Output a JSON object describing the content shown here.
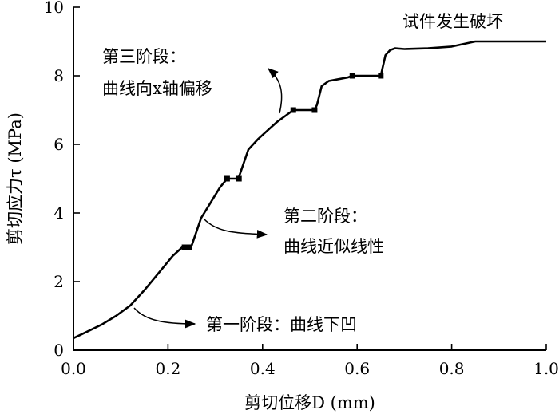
{
  "chart_data": {
    "type": "line",
    "xlabel": "剪切位移D (mm)",
    "ylabel": "剪切应力τ (MPa)",
    "xlim": [
      0,
      1.0
    ],
    "ylim": [
      0,
      10
    ],
    "x_ticks": [
      0.0,
      0.2,
      0.4,
      0.6,
      0.8,
      1.0
    ],
    "x_tick_labels": [
      "0.0",
      "0.2",
      "0.4",
      "0.6",
      "0.8",
      "1.0"
    ],
    "y_ticks": [
      0,
      2,
      4,
      6,
      8,
      10
    ],
    "y_tick_labels": [
      "0",
      "2",
      "4",
      "6",
      "8",
      "10"
    ],
    "grid": false,
    "legend": "none",
    "line_color": "#000000",
    "series": [
      {
        "x": [
          0.0,
          0.03,
          0.06,
          0.09,
          0.12,
          0.15,
          0.18,
          0.21,
          0.23,
          0.235,
          0.245,
          0.25,
          0.27,
          0.29,
          0.31,
          0.325,
          0.33,
          0.345,
          0.35,
          0.37,
          0.39,
          0.41,
          0.43,
          0.45,
          0.465,
          0.47,
          0.51,
          0.515,
          0.525,
          0.54,
          0.56,
          0.58,
          0.59,
          0.6,
          0.64,
          0.65,
          0.66,
          0.67,
          0.68,
          0.7,
          0.75,
          0.8,
          0.85,
          0.9,
          1.0
        ],
        "y": [
          0.35,
          0.55,
          0.75,
          1.0,
          1.3,
          1.75,
          2.25,
          2.75,
          3.0,
          3.0,
          3.0,
          3.05,
          3.85,
          4.3,
          4.75,
          5.0,
          5.0,
          5.0,
          5.05,
          5.85,
          6.15,
          6.4,
          6.65,
          6.85,
          7.0,
          7.0,
          7.0,
          7.15,
          7.7,
          7.85,
          7.9,
          7.95,
          8.0,
          8.0,
          8.0,
          8.0,
          8.6,
          8.75,
          8.8,
          8.78,
          8.8,
          8.85,
          9.0,
          9.0,
          9.0
        ]
      }
    ],
    "step_markers": [
      {
        "x": 0.235,
        "y": 3.0
      },
      {
        "x": 0.245,
        "y": 3.0
      },
      {
        "x": 0.325,
        "y": 5.0
      },
      {
        "x": 0.35,
        "y": 5.0
      },
      {
        "x": 0.465,
        "y": 7.0
      },
      {
        "x": 0.51,
        "y": 7.0
      },
      {
        "x": 0.59,
        "y": 8.0
      },
      {
        "x": 0.65,
        "y": 8.0
      }
    ],
    "annotations": [
      {
        "id": "failure",
        "text": "试件发生破坏"
      },
      {
        "id": "stage3-title",
        "text": "第三阶段："
      },
      {
        "id": "stage3-desc",
        "text": "曲线向x轴偏移"
      },
      {
        "id": "stage2-title",
        "text": "第二阶段："
      },
      {
        "id": "stage2-desc",
        "text": "曲线近似线性"
      },
      {
        "id": "stage1",
        "text": "第一阶段：曲线下凹"
      }
    ]
  }
}
